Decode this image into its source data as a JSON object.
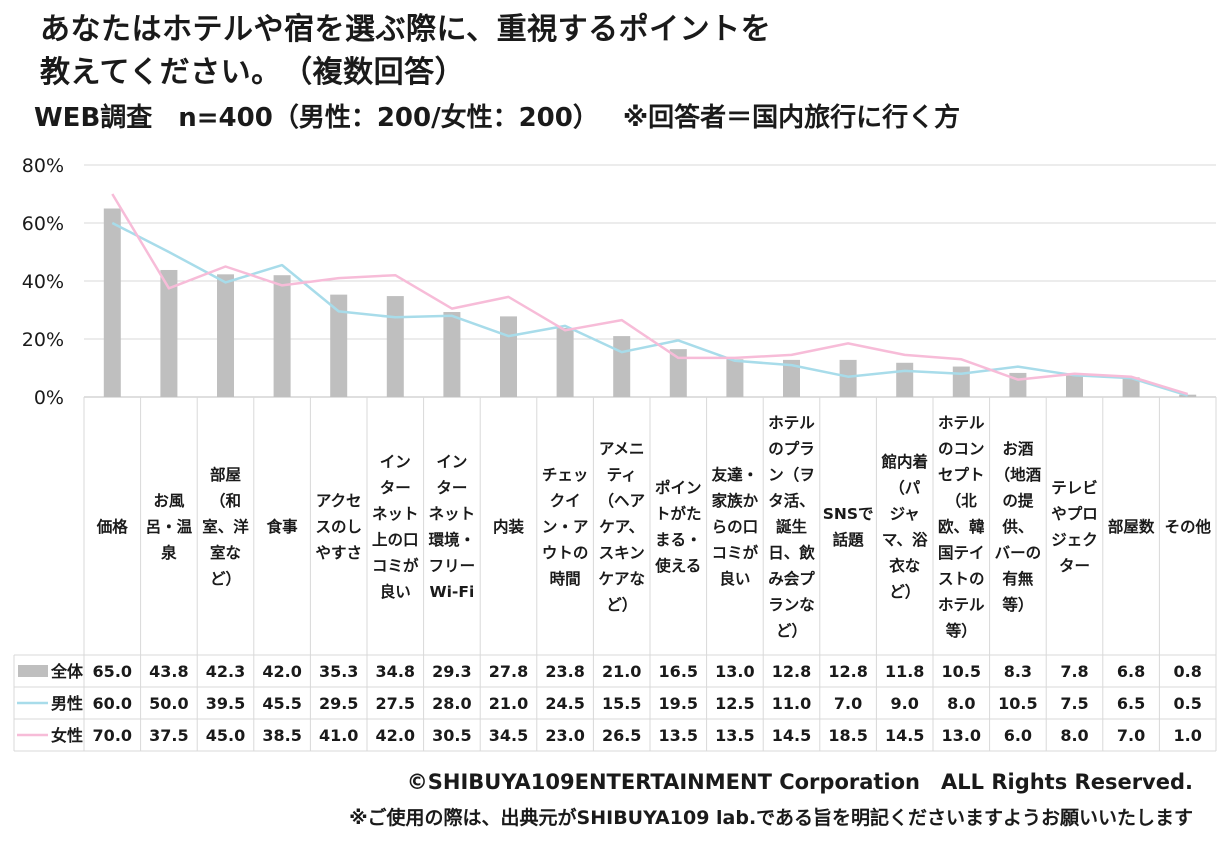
{
  "title_line1": "あなたはホテルや宿を選ぶ際に、重視するポイントを",
  "title_line2": "教えてください。　（複数回答）",
  "subtitle_survey": "WEB調査　n=400（男性：200/女性：200）",
  "subtitle_note": "※回答者＝国内旅行に行く方",
  "footer_copyright": "©SHIBUYA109ENTERTAINMENT Corporation　ALL Rights Reserved.",
  "footer_usage": "※ご使用の際は、出典元がSHIBUYA109 lab.である旨を明記くださいますようお願いいたします",
  "colors": {
    "all": "#bfbfbf",
    "male": "#a8dcea",
    "female": "#f7bcd8",
    "grid": "#d9d9d9"
  },
  "chart_data": {
    "type": "bar",
    "categories": [
      [
        "価格"
      ],
      [
        "お風",
        "呂・温",
        "泉"
      ],
      [
        "部屋",
        "（和",
        "室、洋",
        "室な",
        "ど）"
      ],
      [
        "食事"
      ],
      [
        "アクセ",
        "スのし",
        "やすさ"
      ],
      [
        "イン",
        "ター",
        "ネット",
        "上の口",
        "コミが",
        "良い"
      ],
      [
        "イン",
        "ター",
        "ネット",
        "環境・",
        "フリー",
        "Wi-Fi"
      ],
      [
        "内装"
      ],
      [
        "チェッ",
        "クイ",
        "ン・ア",
        "ウトの",
        "時間"
      ],
      [
        "アメニ",
        "ティ",
        "（ヘア",
        "ケア、",
        "スキン",
        "ケアな",
        "ど）"
      ],
      [
        "ポイン",
        "トがた",
        "まる・",
        "使える"
      ],
      [
        "友達・",
        "家族か",
        "らの口",
        "コミが",
        "良い"
      ],
      [
        "ホテル",
        "のプラ",
        "ン（ヲ",
        "タ活、",
        "誕生",
        "日、飲",
        "み会プ",
        "ランな",
        "ど）"
      ],
      [
        "SNSで",
        "話題"
      ],
      [
        "館内着",
        "（パ",
        "ジャ",
        "マ、浴",
        "衣な",
        "ど）"
      ],
      [
        "ホテル",
        "のコン",
        "セプト",
        "（北",
        "欧、韓",
        "国テイ",
        "ストの",
        "ホテル",
        "等）"
      ],
      [
        "お酒",
        "（地酒",
        "の提",
        "供、",
        "バーの",
        "有無",
        "等）"
      ],
      [
        "テレビ",
        "やプロ",
        "ジェク",
        "ター"
      ],
      [
        "部屋数"
      ],
      [
        "その他"
      ]
    ],
    "series": [
      {
        "name": "全体",
        "mark": "bar",
        "values": [
          65.0,
          43.8,
          42.3,
          42.0,
          35.3,
          34.8,
          29.3,
          27.8,
          23.8,
          21.0,
          16.5,
          13.0,
          12.8,
          12.8,
          11.8,
          10.5,
          8.3,
          7.8,
          6.8,
          0.8
        ]
      },
      {
        "name": "男性",
        "mark": "line",
        "values": [
          60.0,
          50.0,
          39.5,
          45.5,
          29.5,
          27.5,
          28.0,
          21.0,
          24.5,
          15.5,
          19.5,
          12.5,
          11.0,
          7.0,
          9.0,
          8.0,
          10.5,
          7.5,
          6.5,
          0.5
        ]
      },
      {
        "name": "女性",
        "mark": "line",
        "values": [
          70.0,
          37.5,
          45.0,
          38.5,
          41.0,
          42.0,
          30.5,
          34.5,
          23.0,
          26.5,
          13.5,
          13.5,
          14.5,
          18.5,
          14.5,
          13.0,
          6.0,
          8.0,
          7.0,
          1.0
        ]
      }
    ],
    "yticks": [
      "80%",
      "60%",
      "40%",
      "20%",
      "0%"
    ],
    "ylim": [
      0,
      80
    ],
    "unit": "%",
    "grid": true,
    "legend": "data-table"
  }
}
